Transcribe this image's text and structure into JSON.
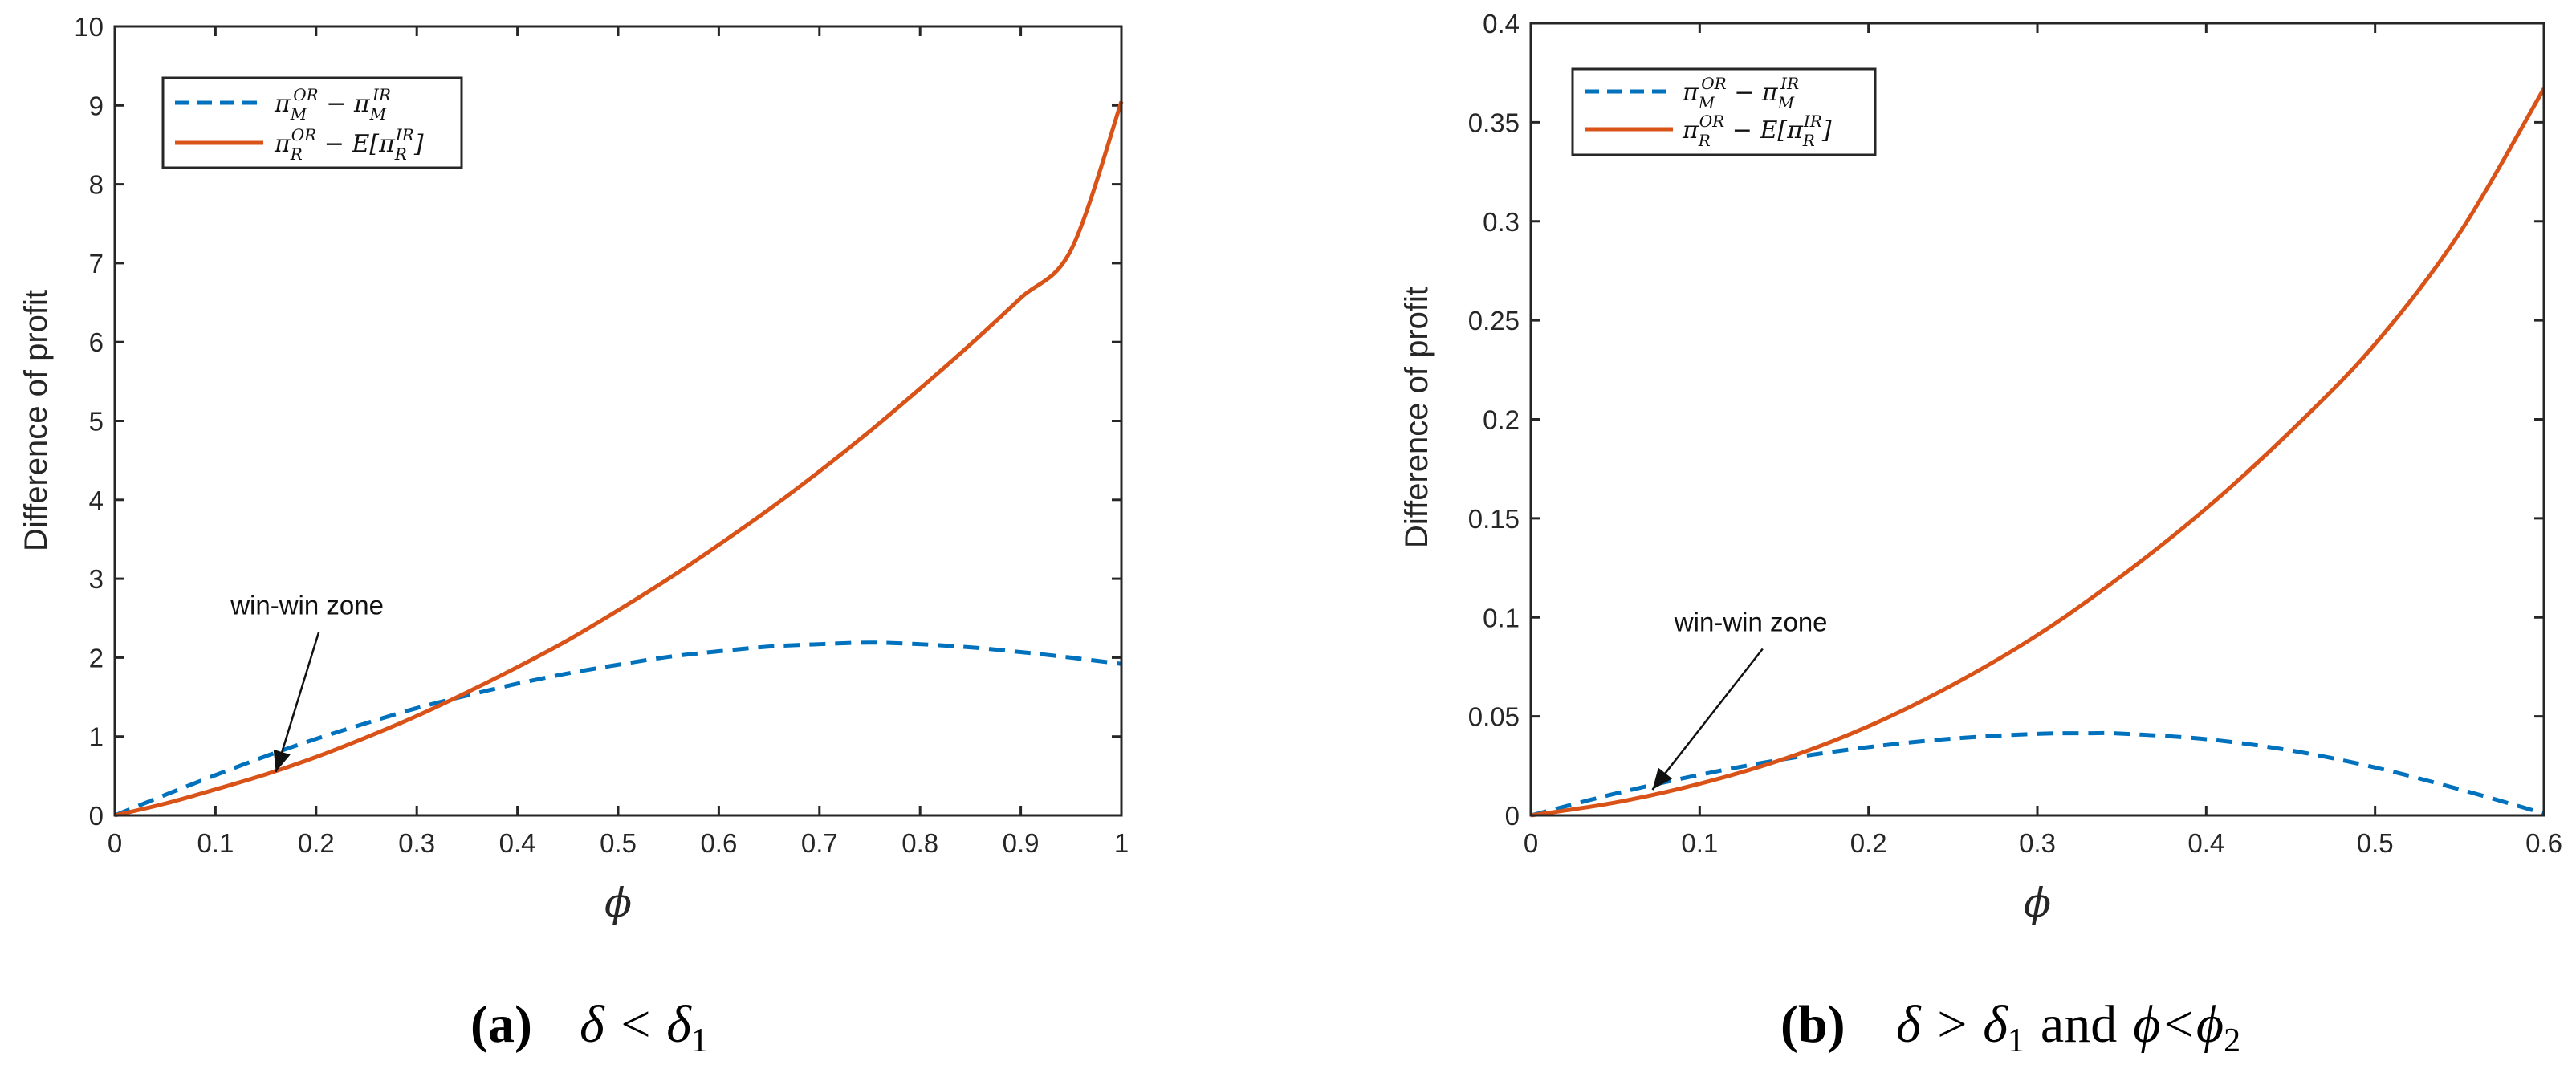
{
  "colors": {
    "series1": "#0072BD",
    "series2": "#D95319",
    "axis": "#262626"
  },
  "chart_data": [
    {
      "type": "line",
      "panel_label": "(a)",
      "caption_math": "δ < δ",
      "caption_sub": "1",
      "xlabel": "ϕ",
      "ylabel": "Difference of profit",
      "xlim": [
        0,
        1
      ],
      "ylim": [
        0,
        10
      ],
      "xticks": [
        0,
        0.1,
        0.2,
        0.3,
        0.4,
        0.5,
        0.6,
        0.7,
        0.8,
        0.9,
        1
      ],
      "xtick_labels": [
        "0",
        "0.1",
        "0.2",
        "0.3",
        "0.4",
        "0.5",
        "0.6",
        "0.7",
        "0.8",
        "0.9",
        "1"
      ],
      "yticks": [
        0,
        1,
        2,
        3,
        4,
        5,
        6,
        7,
        8,
        9,
        10
      ],
      "ytick_labels": [
        "0",
        "1",
        "2",
        "3",
        "4",
        "5",
        "6",
        "7",
        "8",
        "9",
        "10"
      ],
      "legend_position": "top-left",
      "annotation": {
        "text": "win-win zone",
        "target_x": 0.16,
        "target_y": 0.55,
        "text_x": 0.115,
        "text_y": 2.55
      },
      "series": [
        {
          "name": "π_M^OR − π_M^IR",
          "style": "dashed",
          "x": [
            0,
            0.05,
            0.1,
            0.15,
            0.2,
            0.25,
            0.3,
            0.35,
            0.4,
            0.45,
            0.5,
            0.55,
            0.6,
            0.65,
            0.7,
            0.75,
            0.8,
            0.85,
            0.9,
            0.95,
            1
          ],
          "y": [
            0,
            0.26,
            0.51,
            0.75,
            0.97,
            1.17,
            1.36,
            1.52,
            1.67,
            1.8,
            1.91,
            2.01,
            2.08,
            2.14,
            2.17,
            2.19,
            2.17,
            2.13,
            2.07,
            2.0,
            1.92
          ]
        },
        {
          "name": "π_R^OR − E[π_R^IR]",
          "style": "solid",
          "x": [
            0,
            0.05,
            0.1,
            0.15,
            0.2,
            0.25,
            0.3,
            0.35,
            0.4,
            0.45,
            0.5,
            0.55,
            0.6,
            0.65,
            0.7,
            0.75,
            0.8,
            0.85,
            0.9,
            0.95,
            1
          ],
          "y": [
            0,
            0.15,
            0.33,
            0.52,
            0.74,
            0.99,
            1.26,
            1.56,
            1.88,
            2.22,
            2.6,
            3.0,
            3.43,
            3.88,
            4.36,
            4.87,
            5.41,
            5.97,
            6.56,
            7.17,
            9.05
          ]
        }
      ]
    },
    {
      "type": "line",
      "panel_label": "(b)",
      "caption_math": "δ > δ",
      "caption_sub": "1",
      "caption_mid": "and",
      "caption_math2": "ϕ<ϕ",
      "caption_sub2": "2",
      "xlabel": "ϕ",
      "ylabel": "Difference of profit",
      "xlim": [
        0,
        0.6
      ],
      "ylim": [
        0,
        0.4
      ],
      "xticks": [
        0,
        0.1,
        0.2,
        0.3,
        0.4,
        0.5,
        0.6
      ],
      "xtick_labels": [
        "0",
        "0.1",
        "0.2",
        "0.3",
        "0.4",
        "0.5",
        "0.6"
      ],
      "yticks": [
        0,
        0.05,
        0.1,
        0.15,
        0.2,
        0.25,
        0.3,
        0.35,
        0.4
      ],
      "ytick_labels": [
        "0",
        "0.05",
        "0.1",
        "0.15",
        "0.2",
        "0.25",
        "0.3",
        "0.35",
        "0.4"
      ],
      "legend_position": "top-left",
      "annotation": {
        "text": "win-win zone",
        "target_x": 0.072,
        "target_y": 0.013,
        "text_x": 0.085,
        "text_y": 0.093
      },
      "series": [
        {
          "name": "π_M^OR − π_M^IR",
          "style": "dashed",
          "x": [
            0,
            0.05,
            0.1,
            0.15,
            0.2,
            0.25,
            0.3,
            0.33,
            0.35,
            0.4,
            0.45,
            0.5,
            0.55,
            0.6
          ],
          "y": [
            0,
            0.011,
            0.0205,
            0.0284,
            0.0345,
            0.0388,
            0.0412,
            0.0415,
            0.0413,
            0.0385,
            0.0328,
            0.0242,
            0.0132,
            0.001
          ]
        },
        {
          "name": "π_R^OR − E[π_R^IR]",
          "style": "solid",
          "x": [
            0,
            0.05,
            0.1,
            0.15,
            0.2,
            0.25,
            0.3,
            0.35,
            0.4,
            0.45,
            0.5,
            0.55,
            0.6
          ],
          "y": [
            0,
            0.0065,
            0.016,
            0.0285,
            0.045,
            0.066,
            0.091,
            0.121,
            0.155,
            0.194,
            0.238,
            0.294,
            0.367
          ]
        }
      ]
    }
  ]
}
